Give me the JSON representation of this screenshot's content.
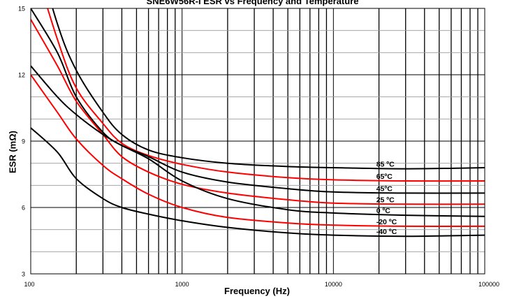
{
  "chart_data": {
    "type": "line",
    "title": "SNE6W56R-I  ESR vs Frequency and Temperature",
    "xlabel": "Frequency (Hz)",
    "ylabel": "ESR (mΩ)",
    "xscale": "log",
    "xlim": [
      100,
      100000
    ],
    "ylim": [
      3,
      15
    ],
    "x_ticks": [
      100,
      1000,
      10000,
      100000
    ],
    "x_tick_labels": [
      "100",
      "1000",
      "10000",
      "100000"
    ],
    "y_ticks": [
      3,
      6,
      9,
      12,
      15
    ],
    "y_tick_labels": [
      "3",
      "6",
      "9",
      "12",
      "15"
    ],
    "grid": true,
    "legend": "none",
    "series": [
      {
        "name": "85 ºC",
        "color": "#000000",
        "label_at_x": 30000,
        "x": [
          100,
          150,
          200,
          300,
          400,
          600,
          1000,
          2000,
          5000,
          10000,
          30000,
          100000
        ],
        "y": [
          18.5,
          14.3,
          12.2,
          10.3,
          9.3,
          8.6,
          8.25,
          8.0,
          7.85,
          7.8,
          7.75,
          7.8
        ]
      },
      {
        "name": "65ºC",
        "color": "#ff0000",
        "label_at_x": 30000,
        "x": [
          100,
          150,
          200,
          300,
          400,
          600,
          1000,
          2000,
          5000,
          10000,
          30000,
          100000
        ],
        "y": [
          17.5,
          13.6,
          11.4,
          9.8,
          8.9,
          8.35,
          7.95,
          7.6,
          7.35,
          7.25,
          7.2,
          7.2
        ]
      },
      {
        "name": "45ºC",
        "color": "#000000",
        "label_at_x": 30000,
        "x": [
          100,
          150,
          200,
          300,
          400,
          600,
          1000,
          2000,
          5000,
          10000,
          30000,
          100000
        ],
        "y": [
          15.0,
          13.0,
          11.0,
          9.4,
          8.8,
          8.3,
          7.6,
          7.15,
          6.85,
          6.7,
          6.65,
          6.65
        ]
      },
      {
        "name": "25 ºC",
        "color": "#ff0000",
        "label_at_x": 30000,
        "x": [
          100,
          150,
          200,
          300,
          400,
          600,
          1000,
          2000,
          5000,
          10000,
          30000,
          100000
        ],
        "y": [
          14.5,
          12.4,
          10.8,
          9.3,
          8.3,
          7.6,
          7.05,
          6.65,
          6.35,
          6.2,
          6.15,
          6.15
        ]
      },
      {
        "name": "0 ºC",
        "color": "#000000",
        "label_at_x": 30000,
        "x": [
          100,
          150,
          200,
          300,
          400,
          600,
          1000,
          2000,
          5000,
          10000,
          30000,
          100000
        ],
        "y": [
          12.4,
          11.0,
          10.2,
          9.3,
          8.8,
          8.2,
          7.2,
          6.4,
          5.9,
          5.75,
          5.65,
          5.6
        ]
      },
      {
        "name": "-20 ºC",
        "color": "#ff0000",
        "label_at_x": 30000,
        "x": [
          100,
          150,
          200,
          300,
          400,
          600,
          1000,
          2000,
          5000,
          10000,
          30000,
          100000
        ],
        "y": [
          12.0,
          10.3,
          9.1,
          7.9,
          7.3,
          6.6,
          6.0,
          5.55,
          5.3,
          5.2,
          5.15,
          5.15
        ]
      },
      {
        "name": "-40 ºC",
        "color": "#000000",
        "label_at_x": 30000,
        "x": [
          100,
          150,
          200,
          300,
          400,
          600,
          1000,
          2000,
          5000,
          10000,
          30000,
          100000
        ],
        "y": [
          9.6,
          8.5,
          7.3,
          6.4,
          6.0,
          5.7,
          5.4,
          5.1,
          4.85,
          4.75,
          4.7,
          4.75
        ]
      }
    ]
  }
}
